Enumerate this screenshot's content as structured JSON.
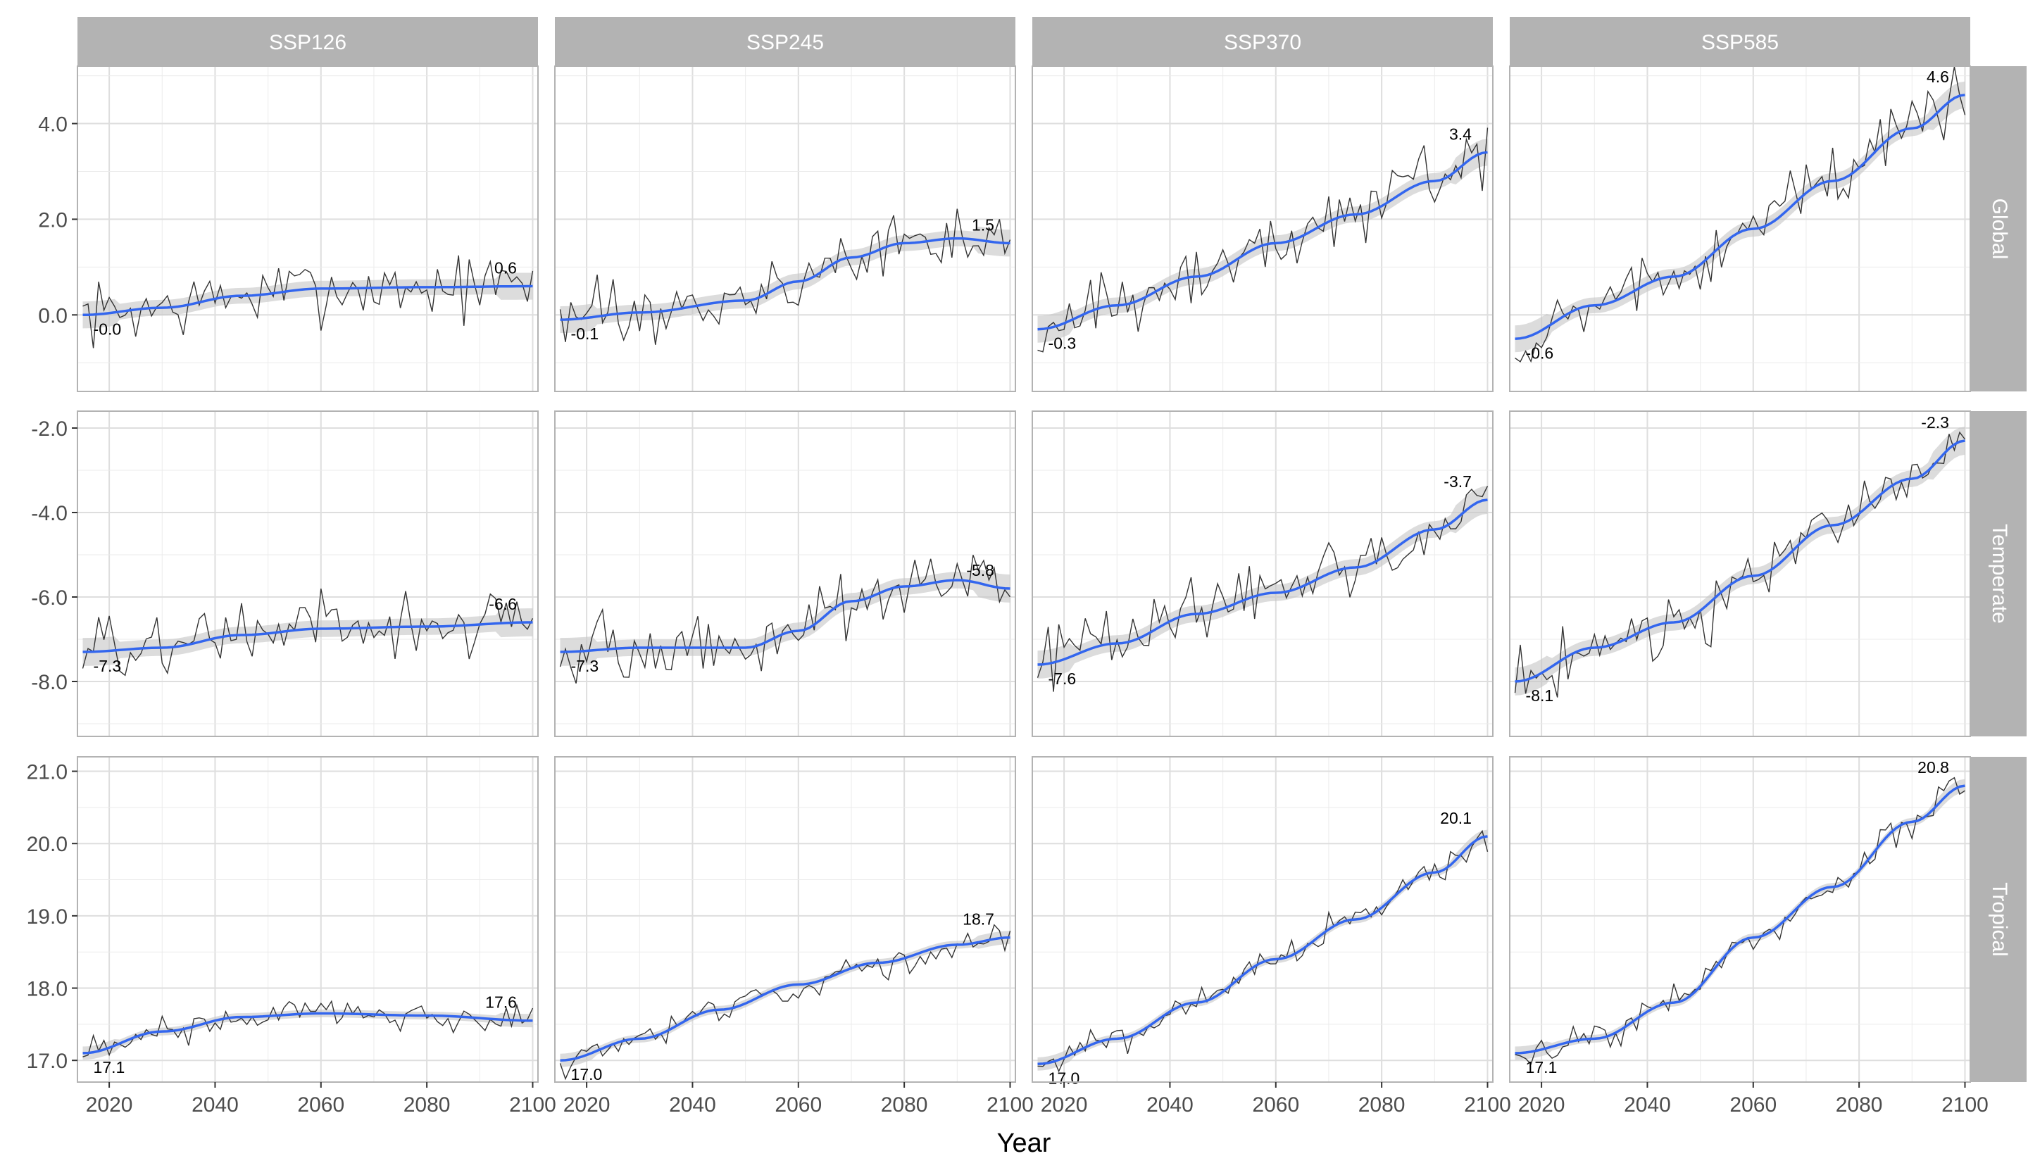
{
  "chart_data": {
    "type": "line",
    "xlabel": "Year",
    "ylabel": "",
    "x_range": [
      2014,
      2101
    ],
    "x_ticks": [
      2020,
      2040,
      2060,
      2080,
      2100
    ],
    "columns": [
      "SSP126",
      "SSP245",
      "SSP370",
      "SSP585"
    ],
    "rows": [
      {
        "name": "Global",
        "ylim": [
          -1.6,
          5.2
        ],
        "y_ticks": [
          0.0,
          2.0,
          4.0
        ],
        "y_tick_labels": [
          "0.0",
          "2.0",
          "4.0"
        ],
        "amplitude": 0.55
      },
      {
        "name": "Temperate",
        "ylim": [
          -9.3,
          -1.6
        ],
        "y_ticks": [
          -8.0,
          -6.0,
          -4.0,
          -2.0
        ],
        "y_tick_labels": [
          "-8.0",
          "-6.0",
          "-4.0",
          "-2.0"
        ],
        "amplitude": 0.65
      },
      {
        "name": "Tropical",
        "ylim": [
          16.7,
          21.2
        ],
        "y_ticks": [
          17.0,
          18.0,
          19.0,
          20.0,
          21.0
        ],
        "y_tick_labels": [
          "17.0",
          "18.0",
          "19.0",
          "20.0",
          "21.0"
        ],
        "amplitude": 0.18
      }
    ],
    "panels": [
      {
        "row": "Global",
        "column": "SSP126",
        "start_label": "-0.0",
        "end_label": "0.6",
        "trend": [
          {
            "x": 2015,
            "y": 0.0
          },
          {
            "x": 2030,
            "y": 0.15
          },
          {
            "x": 2045,
            "y": 0.4
          },
          {
            "x": 2060,
            "y": 0.55
          },
          {
            "x": 2080,
            "y": 0.58
          },
          {
            "x": 2100,
            "y": 0.6
          }
        ]
      },
      {
        "row": "Global",
        "column": "SSP245",
        "start_label": "-0.1",
        "end_label": "1.5",
        "trend": [
          {
            "x": 2015,
            "y": -0.1
          },
          {
            "x": 2030,
            "y": 0.05
          },
          {
            "x": 2050,
            "y": 0.3
          },
          {
            "x": 2060,
            "y": 0.7
          },
          {
            "x": 2070,
            "y": 1.2
          },
          {
            "x": 2080,
            "y": 1.5
          },
          {
            "x": 2090,
            "y": 1.6
          },
          {
            "x": 2100,
            "y": 1.5
          }
        ]
      },
      {
        "row": "Global",
        "column": "SSP370",
        "start_label": "-0.3",
        "end_label": "3.4",
        "trend": [
          {
            "x": 2015,
            "y": -0.3
          },
          {
            "x": 2030,
            "y": 0.2
          },
          {
            "x": 2045,
            "y": 0.8
          },
          {
            "x": 2060,
            "y": 1.5
          },
          {
            "x": 2075,
            "y": 2.1
          },
          {
            "x": 2090,
            "y": 2.8
          },
          {
            "x": 2100,
            "y": 3.4
          }
        ]
      },
      {
        "row": "Global",
        "column": "SSP585",
        "start_label": "-0.6",
        "end_label": "4.6",
        "trend": [
          {
            "x": 2015,
            "y": -0.5
          },
          {
            "x": 2030,
            "y": 0.2
          },
          {
            "x": 2045,
            "y": 0.8
          },
          {
            "x": 2060,
            "y": 1.8
          },
          {
            "x": 2075,
            "y": 2.8
          },
          {
            "x": 2090,
            "y": 3.9
          },
          {
            "x": 2100,
            "y": 4.6
          }
        ]
      },
      {
        "row": "Temperate",
        "column": "SSP126",
        "start_label": "-7.3",
        "end_label": "-6.6",
        "trend": [
          {
            "x": 2015,
            "y": -7.3
          },
          {
            "x": 2030,
            "y": -7.2
          },
          {
            "x": 2045,
            "y": -6.9
          },
          {
            "x": 2060,
            "y": -6.75
          },
          {
            "x": 2080,
            "y": -6.7
          },
          {
            "x": 2100,
            "y": -6.6
          }
        ]
      },
      {
        "row": "Temperate",
        "column": "SSP245",
        "start_label": "-7.3",
        "end_label": "-5.8",
        "trend": [
          {
            "x": 2015,
            "y": -7.3
          },
          {
            "x": 2030,
            "y": -7.2
          },
          {
            "x": 2050,
            "y": -7.2
          },
          {
            "x": 2060,
            "y": -6.8
          },
          {
            "x": 2070,
            "y": -6.1
          },
          {
            "x": 2080,
            "y": -5.75
          },
          {
            "x": 2090,
            "y": -5.6
          },
          {
            "x": 2100,
            "y": -5.8
          }
        ]
      },
      {
        "row": "Temperate",
        "column": "SSP370",
        "start_label": "-7.6",
        "end_label": "-3.7",
        "trend": [
          {
            "x": 2015,
            "y": -7.6
          },
          {
            "x": 2030,
            "y": -7.1
          },
          {
            "x": 2045,
            "y": -6.4
          },
          {
            "x": 2060,
            "y": -5.9
          },
          {
            "x": 2075,
            "y": -5.3
          },
          {
            "x": 2090,
            "y": -4.4
          },
          {
            "x": 2100,
            "y": -3.7
          }
        ]
      },
      {
        "row": "Temperate",
        "column": "SSP585",
        "start_label": "-8.1",
        "end_label": "-2.3",
        "trend": [
          {
            "x": 2015,
            "y": -8.0
          },
          {
            "x": 2030,
            "y": -7.2
          },
          {
            "x": 2045,
            "y": -6.6
          },
          {
            "x": 2060,
            "y": -5.5
          },
          {
            "x": 2075,
            "y": -4.3
          },
          {
            "x": 2090,
            "y": -3.2
          },
          {
            "x": 2100,
            "y": -2.3
          }
        ]
      },
      {
        "row": "Tropical",
        "column": "SSP126",
        "start_label": "17.1",
        "end_label": "17.6",
        "trend": [
          {
            "x": 2015,
            "y": 17.1
          },
          {
            "x": 2030,
            "y": 17.4
          },
          {
            "x": 2045,
            "y": 17.6
          },
          {
            "x": 2060,
            "y": 17.65
          },
          {
            "x": 2080,
            "y": 17.62
          },
          {
            "x": 2100,
            "y": 17.55
          }
        ]
      },
      {
        "row": "Tropical",
        "column": "SSP245",
        "start_label": "17.0",
        "end_label": "18.7",
        "trend": [
          {
            "x": 2015,
            "y": 17.0
          },
          {
            "x": 2030,
            "y": 17.3
          },
          {
            "x": 2045,
            "y": 17.7
          },
          {
            "x": 2060,
            "y": 18.05
          },
          {
            "x": 2075,
            "y": 18.35
          },
          {
            "x": 2090,
            "y": 18.6
          },
          {
            "x": 2100,
            "y": 18.7
          }
        ]
      },
      {
        "row": "Tropical",
        "column": "SSP370",
        "start_label": "17.0",
        "end_label": "20.1",
        "trend": [
          {
            "x": 2015,
            "y": 16.95
          },
          {
            "x": 2030,
            "y": 17.3
          },
          {
            "x": 2045,
            "y": 17.8
          },
          {
            "x": 2060,
            "y": 18.4
          },
          {
            "x": 2075,
            "y": 18.95
          },
          {
            "x": 2090,
            "y": 19.6
          },
          {
            "x": 2100,
            "y": 20.1
          }
        ]
      },
      {
        "row": "Tropical",
        "column": "SSP585",
        "start_label": "17.1",
        "end_label": "20.8",
        "trend": [
          {
            "x": 2015,
            "y": 17.1
          },
          {
            "x": 2030,
            "y": 17.3
          },
          {
            "x": 2045,
            "y": 17.8
          },
          {
            "x": 2060,
            "y": 18.7
          },
          {
            "x": 2075,
            "y": 19.4
          },
          {
            "x": 2090,
            "y": 20.3
          },
          {
            "x": 2100,
            "y": 20.8
          }
        ]
      }
    ],
    "colors": {
      "strip": "#b3b3b3",
      "panel_border": "#b3b3b3",
      "grid": "#ebebeb",
      "raw_line": "#333333",
      "smooth_line": "#3366ee",
      "ribbon": "#c4c4c4",
      "tick_text": "#4d4d4d"
    },
    "grid": true
  }
}
